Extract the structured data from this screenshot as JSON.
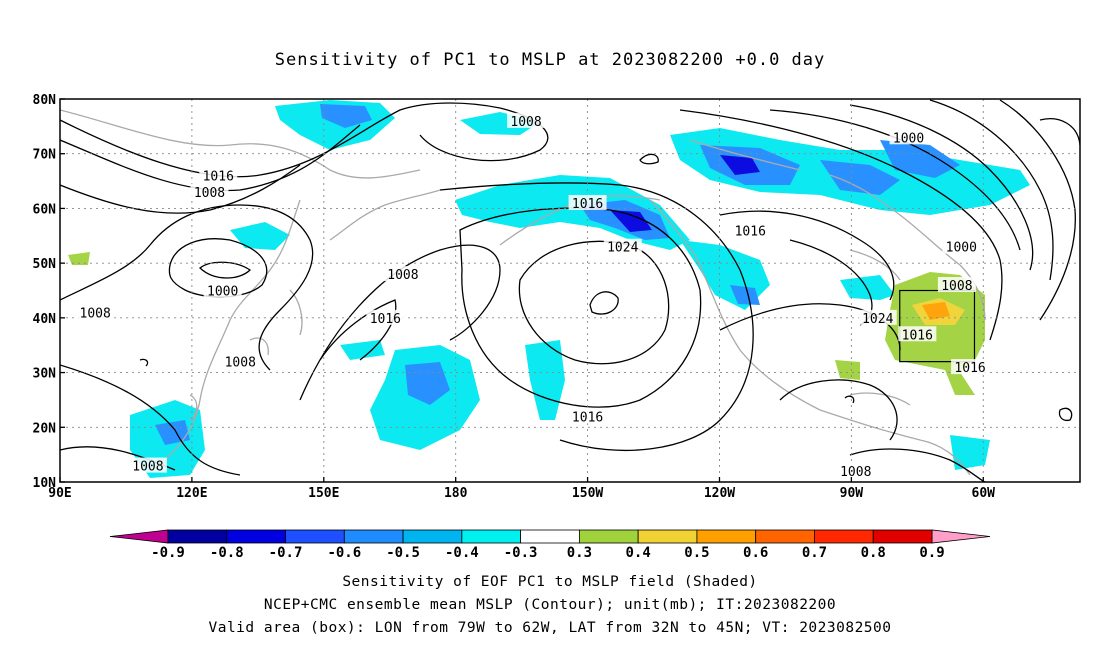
{
  "title": "Sensitivity of PC1 to MSLP at 2023082200 +0.0 day",
  "lon_ticks": [
    "90E",
    "120E",
    "150E",
    "180",
    "150W",
    "120W",
    "90W",
    "60W"
  ],
  "lat_ticks": [
    "80N",
    "70N",
    "60N",
    "50N",
    "40N",
    "30N",
    "20N",
    "10N"
  ],
  "contour_labels": [
    {
      "text": "1008",
      "lon": -164,
      "lat": 76
    },
    {
      "text": "1000",
      "lon": -77,
      "lat": 73
    },
    {
      "text": "1016",
      "lon": 126,
      "lat": 66
    },
    {
      "text": "1008",
      "lon": 124,
      "lat": 63
    },
    {
      "text": "1016",
      "lon": -150,
      "lat": 61
    },
    {
      "text": "1016",
      "lon": -113,
      "lat": 56
    },
    {
      "text": "1024",
      "lon": -142,
      "lat": 53
    },
    {
      "text": "1000",
      "lon": -65,
      "lat": 53
    },
    {
      "text": "1008",
      "lon": 168,
      "lat": 48
    },
    {
      "text": "1008",
      "lon": -66,
      "lat": 46
    },
    {
      "text": "1000",
      "lon": 127,
      "lat": 45
    },
    {
      "text": "1008",
      "lon": 98,
      "lat": 41
    },
    {
      "text": "1016",
      "lon": 164,
      "lat": 40
    },
    {
      "text": "1024",
      "lon": -84,
      "lat": 40
    },
    {
      "text": "1016",
      "lon": -75,
      "lat": 37
    },
    {
      "text": "1008",
      "lon": 131,
      "lat": 32
    },
    {
      "text": "1016",
      "lon": -63,
      "lat": 31
    },
    {
      "text": "1016",
      "lon": -150,
      "lat": 22
    },
    {
      "text": "1008",
      "lon": 110,
      "lat": 13
    },
    {
      "text": "1008",
      "lon": -89,
      "lat": 12
    }
  ],
  "valid_box": {
    "lon_w": -79,
    "lon_e": -62,
    "lat_s": 32,
    "lat_n": 45
  },
  "colorbar": {
    "labels": [
      "-0.9",
      "-0.8",
      "-0.7",
      "-0.6",
      "-0.5",
      "-0.4",
      "-0.3",
      "0.3",
      "0.4",
      "0.5",
      "0.6",
      "0.7",
      "0.8",
      "0.9"
    ],
    "colors": [
      "#0000a0",
      "#0000e0",
      "#1e50ff",
      "#1e8cff",
      "#00b4f0",
      "#00f0f0",
      "#ffffff",
      "#a0d23c",
      "#f0d232",
      "#ffa000",
      "#ff6400",
      "#ff2800",
      "#e00000"
    ],
    "low_end_color": "#c00090",
    "high_end_color": "#ff9ec8"
  },
  "caption": {
    "line1": "Sensitivity of EOF PC1 to MSLP field (Shaded)",
    "line2": "NCEP+CMC ensemble mean MSLP (Contour); unit(mb); IT:2023082200",
    "line3": "Valid area (box): LON from 79W to 62W, LAT from 32N to 45N; VT: 2023082500"
  }
}
